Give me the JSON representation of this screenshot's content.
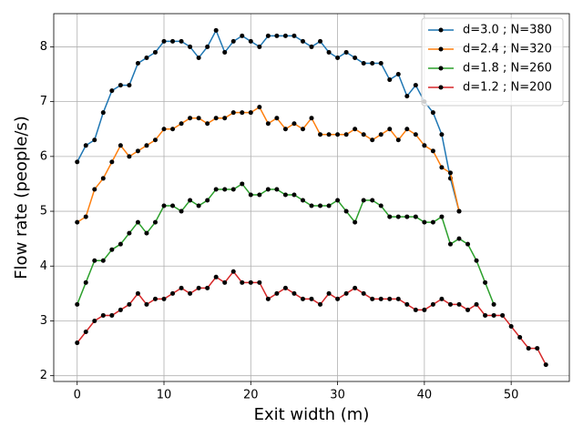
{
  "chart_data": {
    "type": "line",
    "x_label": "Exit width (m)",
    "y_label": "Flow rate (people/s)",
    "x": [
      0,
      1,
      2,
      3,
      4,
      5,
      6,
      7,
      8,
      9,
      10,
      11,
      12,
      13,
      14,
      15,
      16,
      17,
      18,
      19,
      20,
      21,
      22,
      23,
      24,
      25,
      26,
      27,
      28,
      29,
      30,
      31,
      32,
      33,
      34,
      35,
      36,
      37,
      38,
      39,
      40,
      41,
      42,
      43,
      44,
      45,
      46,
      47,
      48,
      49,
      50,
      51,
      52,
      53,
      54
    ],
    "series": [
      {
        "name": "d=3.0 ; N=380",
        "color": "#1f77b4",
        "values": [
          5.9,
          6.2,
          6.3,
          6.8,
          7.2,
          7.3,
          7.3,
          7.7,
          7.8,
          7.9,
          8.1,
          8.1,
          8.1,
          8.0,
          7.8,
          8.0,
          8.3,
          7.9,
          8.1,
          8.2,
          8.1,
          8.0,
          8.2,
          8.2,
          8.2,
          8.2,
          8.1,
          8.0,
          8.1,
          7.9,
          7.8,
          7.9,
          7.8,
          7.7,
          7.7,
          7.7,
          7.4,
          7.5,
          7.1,
          7.3,
          7.0,
          6.8,
          6.4,
          5.6,
          5.0,
          null,
          null,
          null,
          null,
          null,
          null,
          null,
          null,
          null,
          null
        ]
      },
      {
        "name": "d=2.4 ; N=320",
        "color": "#ff7f0e",
        "values": [
          4.8,
          4.9,
          5.4,
          5.6,
          5.9,
          6.2,
          6.0,
          6.1,
          6.2,
          6.3,
          6.5,
          6.5,
          6.6,
          6.7,
          6.7,
          6.6,
          6.7,
          6.7,
          6.8,
          6.8,
          6.8,
          6.9,
          6.6,
          6.7,
          6.5,
          6.6,
          6.5,
          6.7,
          6.4,
          6.4,
          6.4,
          6.4,
          6.5,
          6.4,
          6.3,
          6.4,
          6.5,
          6.3,
          6.5,
          6.4,
          6.2,
          6.1,
          5.8,
          5.7,
          5.0,
          null,
          null,
          null,
          null,
          null,
          null,
          null,
          null,
          null,
          null
        ]
      },
      {
        "name": "d=1.8 ; N=260",
        "color": "#2ca02c",
        "values": [
          3.3,
          3.7,
          4.1,
          4.1,
          4.3,
          4.4,
          4.6,
          4.8,
          4.6,
          4.8,
          5.1,
          5.1,
          5.0,
          5.2,
          5.1,
          5.2,
          5.4,
          5.4,
          5.4,
          5.5,
          5.3,
          5.3,
          5.4,
          5.4,
          5.3,
          5.3,
          5.2,
          5.1,
          5.1,
          5.1,
          5.2,
          5.0,
          4.8,
          5.2,
          5.2,
          5.1,
          4.9,
          4.9,
          4.9,
          4.9,
          4.8,
          4.8,
          4.9,
          4.4,
          4.5,
          4.4,
          4.1,
          3.7,
          3.3,
          null,
          null,
          null,
          null,
          null,
          null
        ]
      },
      {
        "name": "d=1.2 ; N=200",
        "color": "#d62728",
        "values": [
          2.6,
          2.8,
          3.0,
          3.1,
          3.1,
          3.2,
          3.3,
          3.5,
          3.3,
          3.4,
          3.4,
          3.5,
          3.6,
          3.5,
          3.6,
          3.6,
          3.8,
          3.7,
          3.9,
          3.7,
          3.7,
          3.7,
          3.4,
          3.5,
          3.6,
          3.5,
          3.4,
          3.4,
          3.3,
          3.5,
          3.4,
          3.5,
          3.6,
          3.5,
          3.4,
          3.4,
          3.4,
          3.4,
          3.3,
          3.2,
          3.2,
          3.3,
          3.4,
          3.3,
          3.3,
          3.2,
          3.3,
          3.1,
          3.1,
          3.1,
          2.9,
          2.7,
          2.5,
          2.5,
          2.2
        ]
      }
    ],
    "marker_color": "#000000",
    "xlim": [
      -2.7,
      56.7
    ],
    "xticks": [
      0,
      10,
      20,
      30,
      40,
      50
    ],
    "ylim": [
      1.895,
      8.605
    ],
    "yticks": [
      2,
      3,
      4,
      5,
      6,
      7,
      8
    ],
    "grid": true,
    "legend": "upper right"
  }
}
